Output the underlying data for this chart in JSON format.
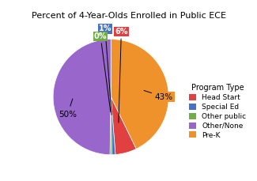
{
  "title": "Percent of 4-Year-Olds Enrolled in Public ECE",
  "labels": [
    "Pre-K",
    "Head Start",
    "Special Ed",
    "Other public",
    "Other/None"
  ],
  "values": [
    43,
    6,
    1,
    0.5,
    50
  ],
  "display_values": [
    "43%",
    "6%",
    "1%",
    "0%",
    "50%"
  ],
  "colors": [
    "#f0922b",
    "#e04040",
    "#4472c4",
    "#70ad47",
    "#9966cc"
  ],
  "legend_labels": [
    "Head Start",
    "Special Ed",
    "Other public",
    "Other/None",
    "Pre-K"
  ],
  "legend_colors": [
    "#e04040",
    "#4472c4",
    "#70ad47",
    "#9966cc",
    "#f0922b"
  ],
  "legend_title": "Program Type",
  "background_color": "#ffffff",
  "startangle": 90
}
